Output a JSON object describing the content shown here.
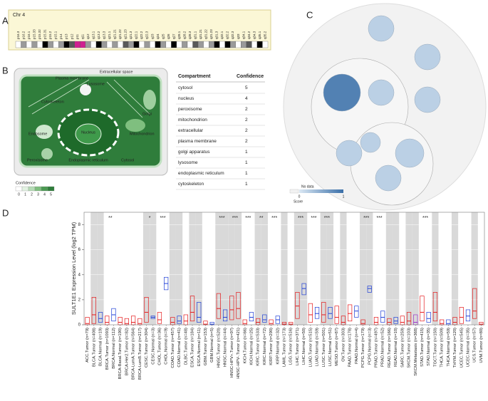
{
  "panels": [
    "A",
    "B",
    "C",
    "D"
  ],
  "chromosome": {
    "title": "Chr 4",
    "bands": [
      "p16.3",
      "p16.2",
      "p16.1",
      "p15.33",
      "p15.32",
      "p15.31",
      "p15.2",
      "p15.1",
      "p14",
      "p13",
      "p12",
      "p11",
      "q11",
      "q12",
      "q13.1",
      "q13.2",
      "q13.3",
      "q21.1",
      "q21.21",
      "q21.22",
      "q21.23",
      "q21.3",
      "q22.1",
      "q22.2",
      "q22.3",
      "q23",
      "q24",
      "q25",
      "q26",
      "q27",
      "q28.1",
      "q28.2",
      "q28.3",
      "q31.1",
      "q31.21",
      "q31.22",
      "q31.23",
      "q31.3",
      "q32.1",
      "q32.2",
      "q32.3",
      "q33",
      "q34.1",
      "q34.2",
      "q34.3",
      "q35.1",
      "q35.2"
    ]
  },
  "cell": {
    "labels": [
      "Plasma membrane",
      "Extracellular space",
      "Cytoskeleton",
      "Lysosome",
      "Golgi",
      "Endosome",
      "Nucleus",
      "Mitochondrion",
      "Peroxisome",
      "Endoplasmic reticulum",
      "Cytosol"
    ],
    "legend_title": "Confidence",
    "legend_ticks": [
      0,
      1,
      2,
      3,
      4,
      5
    ]
  },
  "table": {
    "header": [
      "Compartment",
      "Confidence"
    ],
    "rows": [
      [
        "cytosol",
        5
      ],
      [
        "nucleus",
        4
      ],
      [
        "peroxisome",
        2
      ],
      [
        "mitochondrion",
        2
      ],
      [
        "extracellular",
        2
      ],
      [
        "plasma membrane",
        2
      ],
      [
        "golgi apparatus",
        1
      ],
      [
        "lysosome",
        1
      ],
      [
        "endoplasmic reticulum",
        1
      ],
      [
        "cytoskeleton",
        1
      ]
    ]
  },
  "bubbles": {
    "legend_title": "No data",
    "legend_ticks": [
      0,
      1
    ],
    "score_label": "Score",
    "scores": [
      0.85,
      0.2,
      0.2,
      0.2,
      0.2,
      0.2,
      0.2,
      0.2,
      0.2
    ]
  },
  "chart_data": {
    "type": "box",
    "y_label": "SULT1E1 Expression Level (log2 TPM)",
    "ylim": [
      0,
      9
    ],
    "yticks": [
      0,
      2,
      4,
      6,
      8
    ],
    "categories": [
      "ACC.Tumor (n=79)",
      "BLCA.Tumor (n=408)",
      "BLCA.Normal (n=19)",
      "BRCA.Tumor (n=1093)",
      "BRCA.Normal (n=112)",
      "BRCA-Basal.Tumor (n=190)",
      "BRCA-Her2.Tumor (n=82)",
      "BRCA-LumA.Tumor (n=564)",
      "BRCA-LumB.Tumor (n=217)",
      "CESC.Tumor (n=304)",
      "CESC.Normal (n=3)",
      "CHOL.Tumor (n=36)",
      "CHOL.Normal (n=9)",
      "COAD.Tumor (n=457)",
      "COAD.Normal (n=41)",
      "DLBC.Tumor (n=48)",
      "ESCA.Tumor (n=184)",
      "ESCA.Normal (n=11)",
      "GBM.Tumor (n=153)",
      "GBM.Normal (n=5)",
      "HNSC.Tumor (n=520)",
      "HNSC.Normal (n=44)",
      "HNSC-HPV+.Tumor (n=97)",
      "HNSC-HPV-.Tumor (n=421)",
      "KICH.Tumor (n=66)",
      "KICH.Normal (n=25)",
      "KIRC.Tumor (n=533)",
      "KIRC.Normal (n=72)",
      "KIRP.Tumor (n=290)",
      "KIRP.Normal (n=32)",
      "LAML.Tumor (n=173)",
      "LGG.Tumor (n=516)",
      "LIHC.Tumor (n=371)",
      "LIHC.Normal (n=50)",
      "LUAD.Tumor (n=515)",
      "LUAD.Normal (n=59)",
      "LUSC.Tumor (n=501)",
      "LUSC.Normal (n=51)",
      "MESO.Tumor (n=87)",
      "OV.Tumor (n=303)",
      "PAAD.Tumor (n=178)",
      "PAAD.Normal (n=4)",
      "PCPG.Tumor (n=179)",
      "PCPG.Normal (n=3)",
      "PRAD.Tumor (n=497)",
      "PRAD.Normal (n=52)",
      "READ.Tumor (n=166)",
      "READ.Normal (n=10)",
      "SARC.Tumor (n=259)",
      "SKCM.Tumor (n=103)",
      "SKCM.Metastasis (n=368)",
      "STAD.Tumor (n=415)",
      "STAD.Normal (n=35)",
      "TGCT.Tumor (n=150)",
      "THCA.Tumor (n=509)",
      "THCA.Normal (n=59)",
      "THYM.Tumor (n=120)",
      "UCEC.Tumor (n=545)",
      "UCEC.Normal (n=35)",
      "UCS.Tumor (n=57)",
      "UVM.Tumor (n=80)"
    ],
    "q1": [
      0,
      0.1,
      0.2,
      0,
      0.3,
      0,
      0,
      0,
      0,
      0.2,
      0.5,
      0.1,
      2.8,
      0,
      0.1,
      0,
      0.3,
      0.2,
      0,
      0,
      0.5,
      0.3,
      0.4,
      0.5,
      0,
      0.3,
      0,
      0.2,
      0,
      0.1,
      0,
      0,
      0.5,
      2.4,
      0.2,
      0.5,
      0.2,
      0.5,
      0.1,
      0,
      0.3,
      0.6,
      0,
      2.6,
      0,
      0.2,
      0,
      0.1,
      0,
      0,
      0,
      0.3,
      0.2,
      0.3,
      0,
      0,
      0,
      0.1,
      0.3,
      0.5,
      0
    ],
    "values": [
      0.1,
      0.8,
      0.5,
      0.2,
      0.8,
      0.2,
      0.1,
      0.2,
      0.1,
      1.0,
      0.6,
      0.4,
      3.3,
      0.2,
      0.3,
      0.3,
      1.0,
      0.6,
      0.05,
      0.05,
      1.3,
      0.6,
      1.2,
      1.3,
      0.1,
      0.6,
      0.2,
      0.4,
      0.1,
      0.4,
      0.05,
      0.05,
      1.5,
      2.9,
      0.8,
      0.9,
      0.8,
      0.9,
      0.6,
      0.2,
      0.9,
      1.1,
      0.1,
      2.9,
      0.2,
      0.6,
      0.2,
      0.3,
      0.2,
      0.3,
      0.2,
      1.0,
      0.5,
      1.0,
      0.1,
      0.1,
      0.2,
      0.6,
      0.7,
      1.1,
      0.05
    ],
    "q3": [
      0.6,
      2.2,
      1.0,
      0.7,
      1.3,
      0.6,
      0.5,
      0.7,
      0.5,
      2.2,
      0.7,
      1.0,
      3.8,
      0.6,
      0.7,
      0.8,
      2.3,
      1.8,
      0.3,
      0.2,
      2.5,
      1.2,
      2.3,
      2.6,
      0.4,
      1.0,
      0.5,
      0.8,
      0.4,
      0.7,
      0.2,
      0.2,
      2.6,
      3.3,
      1.7,
      1.4,
      1.8,
      1.4,
      1.5,
      0.7,
      1.6,
      1.5,
      0.4,
      3.1,
      0.6,
      1.1,
      0.5,
      0.6,
      0.7,
      1.0,
      0.8,
      2.3,
      1.0,
      2.6,
      0.4,
      0.4,
      0.6,
      1.4,
      1.2,
      2.9,
      0.2
    ],
    "colors": [
      "#e41a1c",
      "#e41a1c",
      "#1f3fd6",
      "#e41a1c",
      "#1f3fd6",
      "#e41a1c",
      "#e41a1c",
      "#e41a1c",
      "#e41a1c",
      "#e41a1c",
      "#1f3fd6",
      "#e41a1c",
      "#1f3fd6",
      "#e41a1c",
      "#1f3fd6",
      "#e41a1c",
      "#e41a1c",
      "#1f3fd6",
      "#e41a1c",
      "#1f3fd6",
      "#e41a1c",
      "#1f3fd6",
      "#e41a1c",
      "#e41a1c",
      "#e41a1c",
      "#1f3fd6",
      "#e41a1c",
      "#1f3fd6",
      "#e41a1c",
      "#1f3fd6",
      "#e41a1c",
      "#e41a1c",
      "#e41a1c",
      "#1f3fd6",
      "#e41a1c",
      "#1f3fd6",
      "#e41a1c",
      "#1f3fd6",
      "#e41a1c",
      "#e41a1c",
      "#e41a1c",
      "#1f3fd6",
      "#e41a1c",
      "#1f3fd6",
      "#e41a1c",
      "#1f3fd6",
      "#e41a1c",
      "#1f3fd6",
      "#e41a1c",
      "#e41a1c",
      "#9b30c8",
      "#e41a1c",
      "#1f3fd6",
      "#e41a1c",
      "#e41a1c",
      "#1f3fd6",
      "#e41a1c",
      "#e41a1c",
      "#1f3fd6",
      "#e41a1c",
      "#e41a1c"
    ],
    "significance": [
      null,
      null,
      null,
      "**",
      null,
      null,
      null,
      null,
      null,
      "*",
      null,
      "***",
      null,
      null,
      null,
      null,
      null,
      null,
      null,
      null,
      "***",
      null,
      "***",
      null,
      "***",
      null,
      "**",
      null,
      "***",
      null,
      null,
      null,
      "***",
      null,
      "***",
      null,
      "***",
      null,
      null,
      null,
      null,
      null,
      "***",
      null,
      "***",
      null,
      null,
      null,
      null,
      null,
      null,
      "***",
      null,
      null,
      null,
      null,
      null,
      null,
      null,
      null,
      null
    ]
  }
}
